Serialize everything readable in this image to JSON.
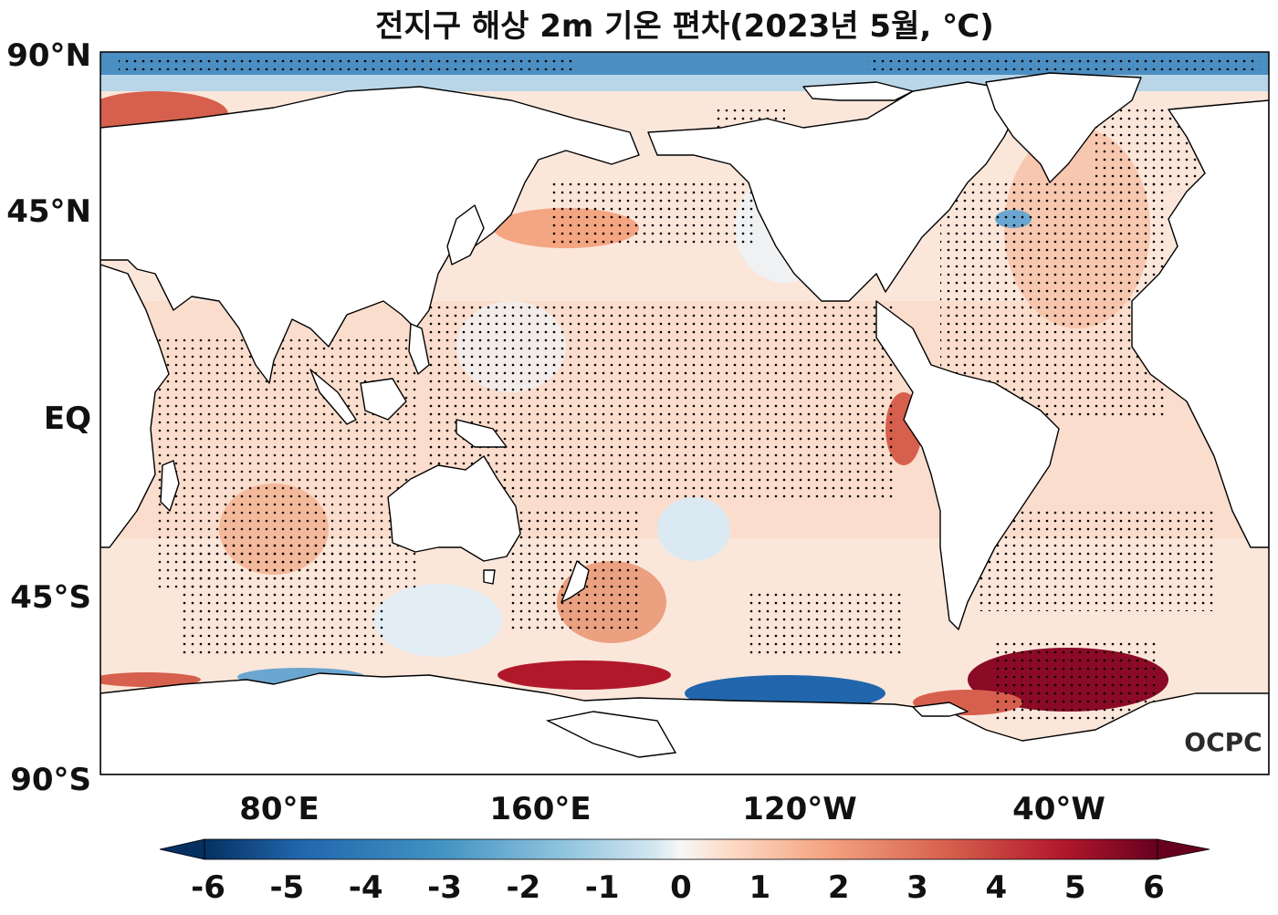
{
  "title": "전지구 해상 2m 기온 편차(2023년 5월, ℃)",
  "map": {
    "projection": "equirectangular",
    "central_longitude": "180°",
    "y_axis_labels": [
      "90°N",
      "45°N",
      "EQ",
      "45°S",
      "90°S"
    ],
    "x_axis_labels": [
      "80°E",
      "160°E",
      "120°W",
      "40°W"
    ],
    "stippling": "dots",
    "colormap": "RdBu_r",
    "colors": {
      "cold_extreme": "#053061",
      "neutral": "#f7f7f7",
      "warm_extreme": "#67001f",
      "land": "#ffffff",
      "coastline": "#000000"
    }
  },
  "colorbar": {
    "ticks": [
      "-6",
      "-5",
      "-4",
      "-3",
      "-2",
      "-1",
      "0",
      "1",
      "2",
      "3",
      "4",
      "5",
      "6"
    ],
    "extend": "both"
  },
  "logo": "OCPC"
}
